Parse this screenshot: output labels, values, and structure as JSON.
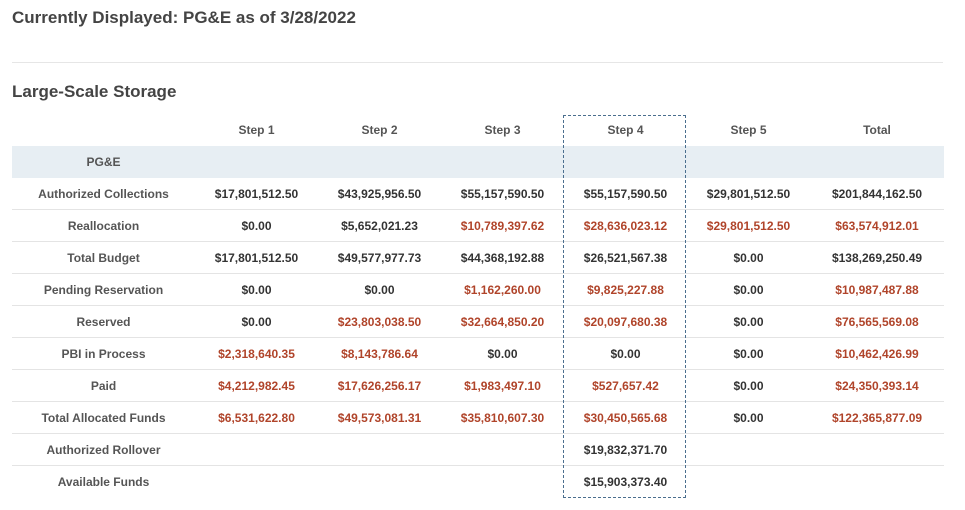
{
  "header": {
    "title": "Currently Displayed: PG&E as of 3/28/2022"
  },
  "section": {
    "title": "Large-Scale Storage"
  },
  "table": {
    "columns": [
      "",
      "Step 1",
      "Step 2",
      "Step 3",
      "Step 4",
      "Step 5",
      "Total"
    ],
    "group_label": "PG&E",
    "rows": [
      {
        "label": "Authorized Collections",
        "cells": [
          "$17,801,512.50",
          "$43,925,956.50",
          "$55,157,590.50",
          "$55,157,590.50",
          "$29,801,512.50",
          "$201,844,162.50"
        ],
        "colors": [
          "black",
          "black",
          "black",
          "black",
          "black",
          "black"
        ]
      },
      {
        "label": "Reallocation",
        "cells": [
          "$0.00",
          "$5,652,021.23",
          "$10,789,397.62",
          "$28,636,023.12",
          "$29,801,512.50",
          "$63,574,912.01"
        ],
        "colors": [
          "black",
          "black",
          "red",
          "red",
          "red",
          "red"
        ]
      },
      {
        "label": "Total Budget",
        "cells": [
          "$17,801,512.50",
          "$49,577,977.73",
          "$44,368,192.88",
          "$26,521,567.38",
          "$0.00",
          "$138,269,250.49"
        ],
        "colors": [
          "black",
          "black",
          "black",
          "black",
          "black",
          "black"
        ]
      },
      {
        "label": "Pending Reservation",
        "cells": [
          "$0.00",
          "$0.00",
          "$1,162,260.00",
          "$9,825,227.88",
          "$0.00",
          "$10,987,487.88"
        ],
        "colors": [
          "black",
          "black",
          "red",
          "red",
          "black",
          "red"
        ]
      },
      {
        "label": "Reserved",
        "cells": [
          "$0.00",
          "$23,803,038.50",
          "$32,664,850.20",
          "$20,097,680.38",
          "$0.00",
          "$76,565,569.08"
        ],
        "colors": [
          "black",
          "red",
          "red",
          "red",
          "black",
          "red"
        ]
      },
      {
        "label": "PBI in Process",
        "cells": [
          "$2,318,640.35",
          "$8,143,786.64",
          "$0.00",
          "$0.00",
          "$0.00",
          "$10,462,426.99"
        ],
        "colors": [
          "red",
          "red",
          "black",
          "black",
          "black",
          "red"
        ]
      },
      {
        "label": "Paid",
        "cells": [
          "$4,212,982.45",
          "$17,626,256.17",
          "$1,983,497.10",
          "$527,657.42",
          "$0.00",
          "$24,350,393.14"
        ],
        "colors": [
          "red",
          "red",
          "red",
          "red",
          "black",
          "red"
        ]
      },
      {
        "label": "Total Allocated Funds",
        "cells": [
          "$6,531,622.80",
          "$49,573,081.31",
          "$35,810,607.30",
          "$30,450,565.68",
          "$0.00",
          "$122,365,877.09"
        ],
        "colors": [
          "red",
          "red",
          "red",
          "red",
          "black",
          "red"
        ]
      },
      {
        "label": "Authorized Rollover",
        "cells": [
          "",
          "",
          "",
          "$19,832,371.70",
          "",
          ""
        ],
        "colors": [
          "black",
          "black",
          "black",
          "black",
          "black",
          "black"
        ]
      },
      {
        "label": "Available Funds",
        "cells": [
          "",
          "",
          "",
          "$15,903,373.40",
          "",
          ""
        ],
        "colors": [
          "black",
          "black",
          "black",
          "black",
          "black",
          "black"
        ]
      }
    ]
  },
  "colors": {
    "accent_red": "#b0442a",
    "group_row_bg": "#e7eef3",
    "highlight_border": "#4a6e8e"
  }
}
